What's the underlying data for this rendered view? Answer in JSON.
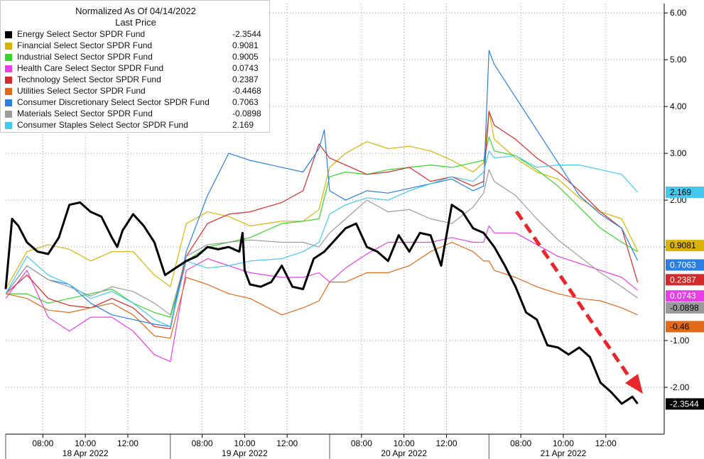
{
  "chart_data": {
    "type": "line",
    "title": "",
    "legend_header": [
      "Normalized As Of 04/14/2022",
      "Last Price"
    ],
    "legend_position": "top-left",
    "grid": true,
    "ylim": [
      -3.0,
      6.2
    ],
    "y_ticks": [
      "6.00",
      "5.00",
      "4.00",
      "3.00",
      "2.00",
      "1.00",
      "-1.00",
      "-2.00"
    ],
    "y_tick_values": [
      6,
      5,
      4,
      3,
      2,
      1,
      -1,
      -2
    ],
    "x_time_ticks": [
      "08:00",
      "10:00",
      "12:00",
      "08:00",
      "10:00",
      "12:00",
      "08:00",
      "10:00",
      "12:00",
      "08:00",
      "10:00",
      "12:00"
    ],
    "x_day_labels": [
      "18 Apr 2022",
      "19 Apr 2022",
      "20 Apr 2022",
      "21 Apr 2022"
    ],
    "annotation": "red dashed downward trend arrow from 08:00 to ~13:00 on 21 Apr 2022",
    "series": [
      {
        "name": "Energy Select Sector SPDR Fund",
        "last_price": "-2.3544",
        "tag": "-2.3544",
        "color": "#000000",
        "x": [
          0,
          0.6,
          1.2,
          2,
          3,
          4,
          5,
          6,
          7,
          8,
          9,
          10,
          10.5,
          11,
          12,
          13,
          14,
          15,
          16,
          17,
          18,
          19,
          20,
          21,
          22,
          22.3,
          22.5,
          23,
          24,
          25,
          26,
          27,
          28,
          29,
          30,
          31,
          32,
          33,
          34,
          35,
          36,
          37,
          38,
          39,
          40,
          41,
          42,
          43,
          44,
          45,
          46,
          47,
          48,
          49,
          50,
          51,
          52,
          53,
          54,
          55,
          56,
          57,
          58,
          59,
          59.5
        ],
        "values": [
          0.1,
          1.6,
          1.45,
          1.1,
          0.9,
          0.85,
          1.2,
          1.9,
          1.95,
          1.75,
          1.65,
          1.2,
          1.0,
          1.35,
          1.7,
          1.45,
          1.1,
          0.4,
          0.55,
          0.7,
          0.8,
          1.0,
          0.95,
          1.0,
          0.9,
          1.3,
          0.5,
          0.2,
          0.15,
          0.25,
          0.6,
          0.15,
          0.1,
          0.75,
          0.9,
          1.15,
          1.4,
          1.5,
          1.0,
          0.9,
          0.7,
          1.25,
          0.9,
          1.3,
          1.25,
          0.6,
          1.9,
          1.75,
          1.4,
          1.3,
          1.0,
          0.6,
          0.15,
          -0.4,
          -0.55,
          -1.1,
          -1.15,
          -1.3,
          -1.15,
          -1.35,
          -1.9,
          -2.1,
          -2.35,
          -2.2,
          -2.35
        ]
      },
      {
        "name": "Financial Select Sector SPDR Fund",
        "last_price": "0.9081",
        "tag": "0.9081",
        "color": "#d9b300",
        "x": [
          0,
          2,
          4,
          6,
          8,
          10,
          12,
          14,
          15.5,
          17,
          19,
          21,
          23,
          26,
          28,
          29.5,
          30.5,
          32,
          34,
          36,
          38,
          40,
          42,
          44,
          45,
          45.5,
          46,
          48,
          50,
          52,
          54,
          56,
          58,
          59.5
        ],
        "values": [
          0.1,
          0.9,
          1.05,
          0.95,
          0.7,
          0.9,
          0.9,
          0.4,
          0.15,
          1.5,
          1.75,
          1.65,
          1.45,
          1.55,
          1.55,
          1.8,
          2.7,
          3.0,
          3.25,
          3.1,
          3.15,
          3.05,
          2.85,
          2.6,
          2.8,
          3.9,
          3.3,
          2.9,
          2.6,
          2.45,
          2.05,
          1.75,
          1.6,
          0.91
        ]
      },
      {
        "name": "Industrial Select Sector SPDR Fund",
        "last_price": "0.9005",
        "tag": "",
        "color": "#39d42a",
        "x": [
          0,
          2,
          4,
          6,
          8,
          10,
          12,
          14,
          15.5,
          17,
          19,
          21,
          23,
          26,
          28,
          29.5,
          30.5,
          32,
          34,
          36,
          38,
          40,
          42,
          44,
          45,
          45.5,
          46,
          48,
          50,
          52,
          54,
          56,
          58,
          59.5
        ],
        "values": [
          0.0,
          0.0,
          -0.2,
          -0.1,
          0.0,
          0.1,
          -0.2,
          -0.4,
          -0.5,
          0.7,
          1.0,
          1.1,
          1.2,
          1.5,
          1.55,
          1.6,
          2.5,
          2.6,
          2.55,
          2.65,
          2.7,
          2.75,
          2.7,
          2.8,
          2.85,
          3.35,
          3.05,
          2.95,
          2.65,
          2.3,
          1.85,
          1.4,
          1.1,
          0.9
        ]
      },
      {
        "name": "Health Care Select Sector SPDR Fund",
        "last_price": "0.0743",
        "tag": "0.0743",
        "color": "#e83ee8",
        "x": [
          0,
          2,
          4,
          6,
          8,
          10,
          12,
          14,
          15.5,
          17,
          19,
          21,
          23,
          26,
          28,
          29.5,
          30.5,
          32,
          34,
          36,
          38,
          40,
          42,
          44,
          45,
          45.5,
          46,
          48,
          50,
          52,
          54,
          56,
          58,
          59.5
        ],
        "values": [
          -0.1,
          0.5,
          -0.5,
          -0.8,
          -0.5,
          -0.5,
          -0.8,
          -1.3,
          -1.45,
          0.5,
          0.75,
          0.6,
          0.45,
          0.35,
          0.35,
          0.45,
          0.25,
          0.55,
          0.85,
          1.1,
          1.1,
          1.1,
          1.2,
          1.1,
          1.1,
          1.45,
          1.3,
          1.3,
          1.05,
          0.8,
          0.65,
          0.5,
          0.35,
          0.074
        ]
      },
      {
        "name": "Technology Select Sector SPDR Fund",
        "last_price": "0.2387",
        "tag": "0.2387",
        "color": "#d42a2a",
        "x": [
          0,
          2,
          4,
          6,
          8,
          10,
          12,
          14,
          15.5,
          17,
          19,
          21,
          23,
          26,
          28,
          29.5,
          30.5,
          32,
          34,
          36,
          38,
          40,
          42,
          44,
          45,
          45.5,
          46,
          48,
          50,
          52,
          54,
          56,
          58,
          59.5
        ],
        "values": [
          0.0,
          0.4,
          -0.1,
          -0.25,
          -0.3,
          -0.1,
          -0.3,
          -0.7,
          -0.75,
          0.8,
          1.5,
          1.7,
          1.75,
          1.95,
          2.2,
          3.2,
          2.9,
          2.75,
          2.55,
          2.6,
          2.7,
          2.4,
          2.5,
          2.3,
          2.4,
          3.9,
          3.6,
          3.3,
          2.9,
          2.6,
          2.2,
          1.75,
          1.4,
          0.24
        ]
      },
      {
        "name": "Utilities Select Sector SPDR Fund",
        "last_price": "-0.4468",
        "tag": "-0.46",
        "color": "#e06a1a",
        "x": [
          0,
          2,
          4,
          6,
          8,
          10,
          12,
          14,
          15.5,
          17,
          19,
          21,
          23,
          26,
          28,
          29.5,
          30.5,
          32,
          34,
          36,
          38,
          40,
          42,
          44,
          45,
          45.5,
          46,
          48,
          50,
          52,
          54,
          56,
          58,
          59.5
        ],
        "values": [
          0.0,
          -0.1,
          -0.35,
          -0.4,
          -0.3,
          -0.2,
          -0.45,
          -0.9,
          -0.95,
          0.35,
          0.2,
          0.0,
          -0.1,
          -0.45,
          -0.3,
          -0.15,
          0.25,
          0.25,
          0.45,
          0.45,
          0.6,
          0.9,
          1.1,
          0.9,
          0.7,
          0.7,
          0.5,
          0.35,
          0.15,
          0.0,
          -0.1,
          -0.15,
          -0.3,
          -0.45
        ]
      },
      {
        "name": "Consumer Discretionary Select Sector SPDR Fund",
        "last_price": "0.7063",
        "tag": "0.7063",
        "color": "#2a7fe0",
        "x": [
          0,
          2,
          4,
          6,
          8,
          10,
          12,
          14,
          15.5,
          17,
          19,
          21,
          23,
          26,
          28,
          29.5,
          30,
          30.5,
          32,
          34,
          36,
          38,
          40,
          42,
          44,
          45,
          45.5,
          46,
          48,
          50,
          52,
          54,
          56,
          58,
          59.5
        ],
        "values": [
          0.0,
          0.6,
          0.3,
          0.2,
          -0.2,
          -0.45,
          -0.55,
          -0.65,
          -0.7,
          0.9,
          2.1,
          3.0,
          2.85,
          2.7,
          2.6,
          3.1,
          3.5,
          2.2,
          2.0,
          2.2,
          2.15,
          2.25,
          2.35,
          2.45,
          2.2,
          2.3,
          5.2,
          4.9,
          4.2,
          3.5,
          2.8,
          2.1,
          1.7,
          1.4,
          0.71
        ]
      },
      {
        "name": "Materials Select Sector SPDR Fund",
        "last_price": "-0.0898",
        "tag": "-0.0898",
        "color": "#9a9a9a",
        "x": [
          0,
          2,
          4,
          6,
          8,
          10,
          12,
          14,
          15.5,
          17,
          19,
          21,
          23,
          26,
          28,
          29.5,
          30.5,
          32,
          34,
          36,
          38,
          40,
          42,
          44,
          45,
          45.5,
          46,
          48,
          50,
          52,
          54,
          56,
          58,
          59.5
        ],
        "values": [
          0.0,
          0.6,
          0.3,
          0.15,
          -0.05,
          0.15,
          0.05,
          -0.2,
          -0.45,
          0.8,
          1.05,
          1.1,
          1.15,
          1.1,
          1.1,
          1.0,
          1.3,
          1.6,
          2.0,
          1.75,
          1.8,
          1.6,
          1.5,
          1.85,
          2.15,
          2.65,
          2.4,
          2.1,
          1.6,
          1.15,
          0.8,
          0.45,
          0.15,
          -0.09
        ]
      },
      {
        "name": "Consumer Staples Select Sector SPDR Fund",
        "last_price": "2.169",
        "tag": "2.169",
        "color": "#45c8f0",
        "x": [
          0,
          2,
          4,
          6,
          8,
          10,
          12,
          14,
          15.5,
          17,
          19,
          21,
          23,
          26,
          28,
          29.5,
          30.5,
          32,
          34,
          36,
          38,
          40,
          42,
          44,
          45,
          45.5,
          46,
          48,
          50,
          52,
          54,
          56,
          58,
          59.5
        ],
        "values": [
          0.0,
          0.8,
          0.4,
          0.2,
          -0.1,
          0.05,
          -0.2,
          -0.55,
          -0.7,
          0.7,
          0.55,
          0.6,
          0.7,
          0.75,
          0.9,
          1.1,
          1.7,
          1.9,
          2.05,
          2.0,
          2.2,
          2.35,
          2.5,
          2.4,
          2.6,
          3.05,
          2.9,
          2.95,
          2.7,
          2.75,
          2.75,
          2.65,
          2.55,
          2.17
        ]
      }
    ]
  }
}
